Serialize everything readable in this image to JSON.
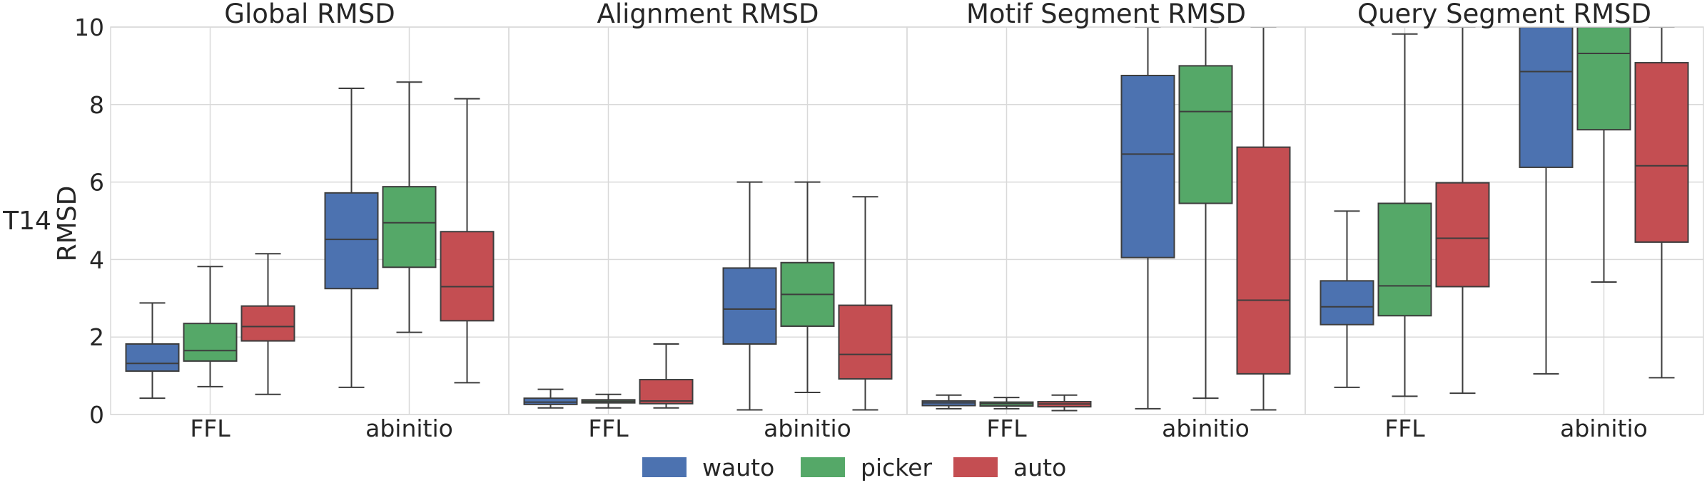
{
  "chart_data": {
    "type": "box",
    "row_label": "T14",
    "ylabel": "RMSD",
    "ylim": [
      0,
      10
    ],
    "yticks": [
      "0",
      "2",
      "4",
      "6",
      "8",
      "10"
    ],
    "categories": [
      "FFL",
      "abinitio"
    ],
    "series": [
      {
        "name": "wauto",
        "color": "#4c72b0"
      },
      {
        "name": "picker",
        "color": "#55a868"
      },
      {
        "name": "auto",
        "color": "#c44e52"
      }
    ],
    "legend_position": "bottom-center",
    "grid": true,
    "panels": [
      {
        "title": "Global RMSD",
        "boxes": {
          "FFL": [
            {
              "min": 0.42,
              "q1": 1.12,
              "median": 1.32,
              "q3": 1.82,
              "max": 2.88
            },
            {
              "min": 0.72,
              "q1": 1.38,
              "median": 1.65,
              "q3": 2.35,
              "max": 3.82
            },
            {
              "min": 0.52,
              "q1": 1.9,
              "median": 2.27,
              "q3": 2.8,
              "max": 4.15
            }
          ],
          "abinitio": [
            {
              "min": 0.7,
              "q1": 3.25,
              "median": 4.52,
              "q3": 5.72,
              "max": 8.42
            },
            {
              "min": 2.12,
              "q1": 3.8,
              "median": 4.95,
              "q3": 5.88,
              "max": 8.58
            },
            {
              "min": 0.82,
              "q1": 2.42,
              "median": 3.3,
              "q3": 4.72,
              "max": 8.15
            }
          ]
        }
      },
      {
        "title": "Alignment RMSD",
        "boxes": {
          "FFL": [
            {
              "min": 0.17,
              "q1": 0.26,
              "median": 0.32,
              "q3": 0.42,
              "max": 0.65
            },
            {
              "min": 0.17,
              "q1": 0.3,
              "median": 0.34,
              "q3": 0.38,
              "max": 0.52
            },
            {
              "min": 0.17,
              "q1": 0.28,
              "median": 0.35,
              "q3": 0.9,
              "max": 1.82
            }
          ],
          "abinitio": [
            {
              "min": 0.12,
              "q1": 1.82,
              "median": 2.72,
              "q3": 3.78,
              "max": 6.0
            },
            {
              "min": 0.57,
              "q1": 2.28,
              "median": 3.1,
              "q3": 3.92,
              "max": 6.0
            },
            {
              "min": 0.12,
              "q1": 0.92,
              "median": 1.55,
              "q3": 2.82,
              "max": 5.62
            }
          ]
        }
      },
      {
        "title": "Motif Segment RMSD",
        "boxes": {
          "FFL": [
            {
              "min": 0.15,
              "q1": 0.23,
              "median": 0.3,
              "q3": 0.35,
              "max": 0.5
            },
            {
              "min": 0.15,
              "q1": 0.22,
              "median": 0.28,
              "q3": 0.32,
              "max": 0.44
            },
            {
              "min": 0.1,
              "q1": 0.2,
              "median": 0.27,
              "q3": 0.33,
              "max": 0.5
            }
          ],
          "abinitio": [
            {
              "min": 0.15,
              "q1": 4.05,
              "median": 6.72,
              "q3": 8.75,
              "max": 10.5
            },
            {
              "min": 0.42,
              "q1": 5.45,
              "median": 7.82,
              "q3": 9.0,
              "max": 10.5
            },
            {
              "min": 0.12,
              "q1": 1.05,
              "median": 2.95,
              "q3": 6.9,
              "max": 10.5
            }
          ]
        }
      },
      {
        "title": "Query Segment RMSD",
        "boxes": {
          "FFL": [
            {
              "min": 0.7,
              "q1": 2.32,
              "median": 2.78,
              "q3": 3.45,
              "max": 5.25
            },
            {
              "min": 0.47,
              "q1": 2.55,
              "median": 3.32,
              "q3": 5.45,
              "max": 9.82
            },
            {
              "min": 0.55,
              "q1": 3.3,
              "median": 4.55,
              "q3": 5.98,
              "max": 10.5
            }
          ],
          "abinitio": [
            {
              "min": 1.05,
              "q1": 6.38,
              "median": 8.85,
              "q3": 10.5,
              "max": 10.5
            },
            {
              "min": 3.42,
              "q1": 7.35,
              "median": 9.32,
              "q3": 10.5,
              "max": 10.5
            },
            {
              "min": 0.95,
              "q1": 4.45,
              "median": 6.42,
              "q3": 9.08,
              "max": 10.5
            }
          ]
        }
      }
    ]
  }
}
